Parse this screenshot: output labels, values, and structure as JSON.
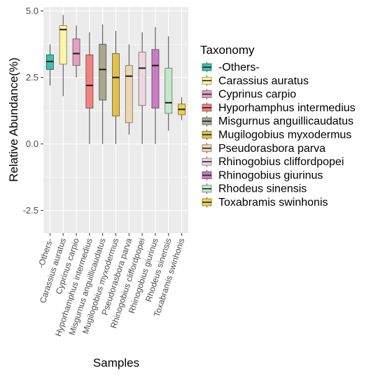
{
  "chart_data": {
    "type": "boxplot",
    "title": "",
    "xlabel": "Samples",
    "ylabel": "Relative Abundance(%)",
    "ylim": [
      -3.35,
      5.15
    ],
    "y_ticks": [
      5.0,
      2.5,
      0.0,
      -2.5
    ],
    "y_tick_labels": [
      "5.0",
      "2.5",
      "0.0",
      "-2.5"
    ],
    "grid": true,
    "legend": {
      "title": "Taxonomy",
      "placement": "right"
    },
    "categories": [
      "-Others-",
      "Carassius auratus",
      "Cyprinus carpio",
      "Hyporhamphus intermedius",
      "Misgurnus anguillicaudatus",
      "Mugilogobius myxodermus",
      "Pseudorasbora parva",
      "Rhinogobius cliffordpopei",
      "Rhinogobius giurinus",
      "Rhodeus sinensis",
      "Toxabramis swinhonis"
    ],
    "colors": [
      "#3fbfad",
      "#fdf5a8",
      "#e4a0c2",
      "#f08282",
      "#a8a890",
      "#dfc050",
      "#ecd6b4",
      "#eed8e0",
      "#c97cc4",
      "#c4e8cc",
      "#ecd050"
    ],
    "boxes": [
      {
        "whisker_low": 2.2,
        "q1": 2.8,
        "median": 3.1,
        "q3": 3.35,
        "whisker_high": 3.75
      },
      {
        "whisker_low": 1.8,
        "q1": 3.0,
        "median": 4.3,
        "q3": 4.45,
        "whisker_high": 4.85
      },
      {
        "whisker_low": 2.5,
        "q1": 2.95,
        "median": 3.4,
        "q3": 3.95,
        "whisker_high": 4.45
      },
      {
        "whisker_low": 0.0,
        "q1": 1.35,
        "median": 2.2,
        "q3": 3.35,
        "whisker_high": 4.2
      },
      {
        "whisker_low": 0.0,
        "q1": 1.65,
        "median": 2.8,
        "q3": 3.75,
        "whisker_high": 4.5
      },
      {
        "whisker_low": 0.0,
        "q1": 1.05,
        "median": 2.5,
        "q3": 3.4,
        "whisker_high": 4.25
      },
      {
        "whisker_low": 0.35,
        "q1": 0.8,
        "median": 2.55,
        "q3": 2.95,
        "whisker_high": 3.75
      },
      {
        "whisker_low": 0.0,
        "q1": 1.45,
        "median": 2.85,
        "q3": 3.45,
        "whisker_high": 4.2
      },
      {
        "whisker_low": 0.0,
        "q1": 1.35,
        "median": 2.95,
        "q3": 3.55,
        "whisker_high": 4.4
      },
      {
        "whisker_low": 0.5,
        "q1": 1.15,
        "median": 1.55,
        "q3": 2.85,
        "whisker_high": 4.05
      },
      {
        "whisker_low": 0.9,
        "q1": 1.1,
        "median": 1.3,
        "q3": 1.5,
        "whisker_high": 1.75
      }
    ]
  }
}
